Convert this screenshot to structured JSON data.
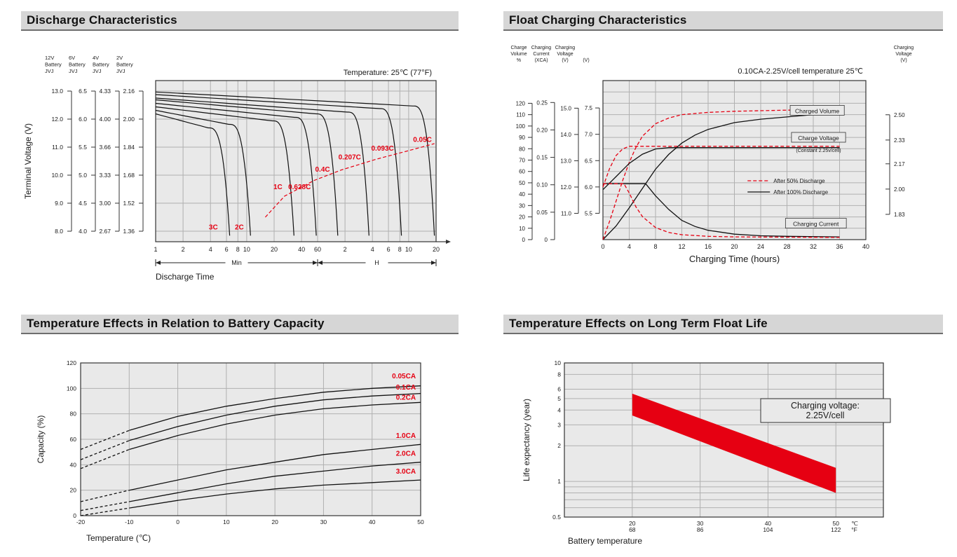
{
  "colors": {
    "header_bg": "#d6d6d6",
    "header_border": "#6e6e6e",
    "plot_bg": "#e9e9e9",
    "grid": "#b0b0b0",
    "red": "#e60012",
    "ink": "#111111"
  },
  "panels": [
    {
      "title": "Discharge Characteristics"
    },
    {
      "title": "Float Charging Characteristics"
    },
    {
      "title": "Temperature Effects in Relation to Battery Capacity"
    },
    {
      "title": "Temperature Effects on Long Term Float Life"
    }
  ],
  "chart_data": [
    {
      "id": "discharge",
      "type": "line",
      "title": "Discharge Characteristics",
      "annotation": "Temperature: 25℃ (77°F)",
      "ylabel": "Terminal Voltage (V)",
      "xlabel": "Discharge Time",
      "x_axis": {
        "scale": "log",
        "unit_segments": [
          {
            "label": "Min",
            "ticks": [
              1,
              2,
              4,
              6,
              8,
              10,
              20,
              40,
              60
            ]
          },
          {
            "label": "H",
            "ticks": [
              2,
              4,
              6,
              8,
              10,
              20
            ]
          }
        ]
      },
      "y_axes": [
        {
          "name": [
            "12V",
            "Battery",
            "JVJ"
          ],
          "ticks": [
            "13.0",
            "12.0",
            "11.0",
            "10.0",
            "9.0",
            "8.0"
          ]
        },
        {
          "name": [
            "6V",
            "Battery",
            "JVJ"
          ],
          "ticks": [
            "6.5",
            "6.0",
            "5.5",
            "5.0",
            "4.5",
            "4.0"
          ]
        },
        {
          "name": [
            "4V",
            "Battery",
            "JVJ"
          ],
          "ticks": [
            "4.33",
            "4.00",
            "3.66",
            "3.33",
            "3.00",
            "2.67"
          ]
        },
        {
          "name": [
            "2V",
            "Battery",
            "JVJ"
          ],
          "ticks": [
            "2.16",
            "2.00",
            "1.84",
            "1.68",
            "1.52",
            "1.36"
          ]
        }
      ],
      "y_range_2v": [
        1.3,
        2.22
      ],
      "curves": [
        {
          "label": "3C",
          "v_start": 2.03,
          "t_end_min": 6.5,
          "label_at": [
            4.3,
            1.37
          ]
        },
        {
          "label": "2C",
          "v_start": 2.05,
          "t_end_min": 11,
          "label_at": [
            8.3,
            1.37
          ]
        },
        {
          "label": "1C",
          "v_start": 2.07,
          "t_end_min": 33,
          "label_at": [
            22,
            1.6
          ]
        },
        {
          "label": "0.628C",
          "v_start": 2.09,
          "t_end_min": 58,
          "label_at": [
            38,
            1.6
          ]
        },
        {
          "label": "0.4C",
          "v_start": 2.11,
          "t_end_min": 100,
          "label_at": [
            68,
            1.7
          ]
        },
        {
          "label": "0.207C",
          "v_start": 2.12,
          "t_end_min": 220,
          "label_at": [
            135,
            1.77
          ]
        },
        {
          "label": "0.093C",
          "v_start": 2.14,
          "t_end_min": 500,
          "label_at": [
            310,
            1.82
          ]
        },
        {
          "label": "0.05C",
          "v_start": 2.155,
          "t_end_min": 1150,
          "label_at": [
            850,
            1.87
          ]
        }
      ],
      "red_dashed_points": [
        [
          16,
          1.44
        ],
        [
          26,
          1.56
        ],
        [
          55,
          1.65
        ],
        [
          110,
          1.71
        ],
        [
          260,
          1.77
        ],
        [
          600,
          1.82
        ],
        [
          1150,
          1.86
        ]
      ]
    },
    {
      "id": "float-charging",
      "type": "line",
      "title": "Float Charging Characteristics",
      "annotation": "0.10CA-2.25V/cell  temperature 25℃",
      "xlabel": "Charging Time (hours)",
      "x_ticks": [
        0,
        4,
        8,
        12,
        16,
        20,
        24,
        28,
        32,
        36,
        40
      ],
      "left_axes": [
        {
          "header": [
            "Charge",
            "Volume",
            "%"
          ],
          "ticks": [
            0,
            10,
            20,
            30,
            40,
            50,
            60,
            70,
            80,
            90,
            100,
            110,
            120
          ],
          "range": [
            0,
            140
          ]
        },
        {
          "header": [
            "Charging",
            "Current",
            "(XCA)"
          ],
          "ticks": [
            "0",
            "0.05",
            "0.10",
            "0.15",
            "0.20",
            "0.25"
          ],
          "values": [
            0,
            0.05,
            0.1,
            0.15,
            0.2,
            0.25
          ],
          "range": [
            0,
            0.29
          ]
        },
        {
          "header": [
            "Charging",
            "Voltage",
            "(V)"
          ],
          "ticks": [
            "11.0",
            "12.0",
            "13.0",
            "14.0",
            "15.0"
          ],
          "values": [
            11,
            12,
            13,
            14,
            15
          ],
          "range": [
            10.0,
            16.05
          ]
        },
        {
          "header": [
            "",
            "",
            "(V)"
          ],
          "ticks": [
            "5.5",
            "6.0",
            "6.5",
            "7.0",
            "7.5"
          ],
          "values": [
            5.5,
            6,
            6.5,
            7,
            7.5
          ],
          "range": [
            5.0,
            8.02
          ]
        }
      ],
      "right_axis": {
        "header": [
          "Charging",
          "Voltage",
          "(V)"
        ],
        "ticks": [
          "2.50",
          "2.33",
          "2.17",
          "2.00",
          "1.83"
        ],
        "values": [
          2.5,
          2.33,
          2.17,
          2.0,
          1.83
        ],
        "range": [
          1.66,
          2.73
        ]
      },
      "series": [
        {
          "name": "charged-volume-100",
          "axis": "pct",
          "style": "solid",
          "color": "#111111",
          "points": [
            [
              0,
              0
            ],
            [
              2,
              12
            ],
            [
              4,
              28
            ],
            [
              6,
              45
            ],
            [
              8,
              62
            ],
            [
              10,
              75
            ],
            [
              12,
              85
            ],
            [
              14,
              92
            ],
            [
              16,
              97
            ],
            [
              20,
              103
            ],
            [
              24,
              106
            ],
            [
              28,
              108
            ],
            [
              32,
              110
            ],
            [
              36,
              111
            ]
          ]
        },
        {
          "name": "charged-volume-50",
          "axis": "pct",
          "style": "dashed",
          "color": "#e60012",
          "points": [
            [
              0,
              0
            ],
            [
              1,
              16
            ],
            [
              2,
              34
            ],
            [
              3,
              52
            ],
            [
              4,
              68
            ],
            [
              5,
              81
            ],
            [
              6,
              91
            ],
            [
              8,
              102
            ],
            [
              10,
              107
            ],
            [
              12,
              110
            ],
            [
              16,
              112
            ],
            [
              20,
              113
            ],
            [
              28,
              114
            ],
            [
              36,
              114
            ]
          ]
        },
        {
          "name": "charge-voltage-100",
          "axis": "v12",
          "style": "solid",
          "color": "#111111",
          "points": [
            [
              0,
              11.9
            ],
            [
              2,
              12.4
            ],
            [
              4,
              12.9
            ],
            [
              6,
              13.25
            ],
            [
              8,
              13.45
            ],
            [
              10,
              13.5
            ],
            [
              36,
              13.5
            ]
          ]
        },
        {
          "name": "charge-voltage-50",
          "axis": "v12",
          "style": "dashed",
          "color": "#e60012",
          "points": [
            [
              0,
              12.0
            ],
            [
              1,
              12.7
            ],
            [
              2,
              13.2
            ],
            [
              3,
              13.45
            ],
            [
              4,
              13.55
            ],
            [
              36,
              13.55
            ]
          ]
        },
        {
          "name": "charging-current-100",
          "axis": "xca",
          "style": "solid",
          "color": "#111111",
          "points": [
            [
              0,
              0.102
            ],
            [
              6.5,
              0.102
            ],
            [
              8,
              0.08
            ],
            [
              10,
              0.055
            ],
            [
              12,
              0.035
            ],
            [
              14,
              0.024
            ],
            [
              16,
              0.017
            ],
            [
              20,
              0.01
            ],
            [
              24,
              0.007
            ],
            [
              28,
              0.006
            ],
            [
              36,
              0.005
            ]
          ]
        },
        {
          "name": "charging-current-50",
          "axis": "xca",
          "style": "dashed",
          "color": "#e60012",
          "points": [
            [
              0,
              0.102
            ],
            [
              3.2,
              0.102
            ],
            [
              4,
              0.085
            ],
            [
              5,
              0.06
            ],
            [
              6,
              0.042
            ],
            [
              8,
              0.022
            ],
            [
              10,
              0.013
            ],
            [
              12,
              0.009
            ],
            [
              16,
              0.006
            ],
            [
              20,
              0.005
            ],
            [
              36,
              0.004
            ]
          ]
        }
      ],
      "plot_labels": [
        {
          "text": "Charged Volume",
          "box": true,
          "fx": 0.815,
          "fy": 0.2
        },
        {
          "text": "Charge Voltage",
          "box": true,
          "fx": 0.82,
          "fy": 0.37
        },
        {
          "text": "(Constant 2.25v/cell)",
          "box": false,
          "fx": 0.82,
          "fy": 0.445
        },
        {
          "text": "Charging Current",
          "box": true,
          "fx": 0.81,
          "fy": 0.91
        }
      ],
      "legend": [
        {
          "text": "After  50% Discharge",
          "style": "dashed",
          "color": "#e60012"
        },
        {
          "text": "After 100% Discharge",
          "style": "solid",
          "color": "#111111"
        }
      ],
      "legend_pos": {
        "fx": 0.55,
        "fy": 0.63
      }
    },
    {
      "id": "temp-capacity",
      "type": "line",
      "title": "Temperature Effects in Relation to Battery Capacity",
      "xlabel": "Temperature (℃)",
      "ylabel": "Capacity (%)",
      "x_ticks": [
        -20,
        -10,
        0,
        10,
        20,
        30,
        40,
        50
      ],
      "y_ticks": [
        0,
        20,
        40,
        60,
        80,
        100,
        120
      ],
      "x_range": [
        -20,
        50
      ],
      "y_range": [
        0,
        120
      ],
      "label_x": 49,
      "label_color": "#e60012",
      "series": [
        {
          "name": "0.05CA",
          "label_y": 108,
          "points": [
            [
              -20,
              52
            ],
            [
              -10,
              67
            ],
            [
              0,
              78
            ],
            [
              10,
              86
            ],
            [
              20,
              92
            ],
            [
              30,
              97
            ],
            [
              40,
              100
            ],
            [
              50,
              102
            ]
          ]
        },
        {
          "name": "0.1CA",
          "label_y": 99,
          "points": [
            [
              -20,
              44
            ],
            [
              -10,
              59
            ],
            [
              0,
              70
            ],
            [
              10,
              79
            ],
            [
              20,
              86
            ],
            [
              30,
              91
            ],
            [
              40,
              94
            ],
            [
              50,
              96
            ]
          ]
        },
        {
          "name": "0.2CA",
          "label_y": 91,
          "points": [
            [
              -20,
              37
            ],
            [
              -10,
              52
            ],
            [
              0,
              63
            ],
            [
              10,
              72
            ],
            [
              20,
              79
            ],
            [
              30,
              84
            ],
            [
              40,
              87
            ],
            [
              50,
              89
            ]
          ]
        },
        {
          "name": "1.0CA",
          "label_y": 61,
          "points": [
            [
              -20,
              11
            ],
            [
              -10,
              20
            ],
            [
              0,
              28
            ],
            [
              10,
              36
            ],
            [
              20,
              42
            ],
            [
              30,
              48
            ],
            [
              40,
              52
            ],
            [
              50,
              56
            ]
          ]
        },
        {
          "name": "2.0CA",
          "label_y": 47,
          "points": [
            [
              -20,
              4
            ],
            [
              -10,
              11
            ],
            [
              0,
              18
            ],
            [
              10,
              25
            ],
            [
              20,
              31
            ],
            [
              30,
              35
            ],
            [
              40,
              39
            ],
            [
              50,
              42
            ]
          ]
        },
        {
          "name": "3.0CA",
          "label_y": 33,
          "points": [
            [
              -20,
              0
            ],
            [
              -10,
              6
            ],
            [
              0,
              12
            ],
            [
              10,
              17
            ],
            [
              20,
              21
            ],
            [
              30,
              24
            ],
            [
              40,
              26
            ],
            [
              50,
              28
            ]
          ]
        }
      ]
    },
    {
      "id": "float-life",
      "type": "area",
      "title": "Temperature Effects on Long Term Float Life",
      "xlabel": "Battery temperature",
      "ylabel": "Life expectancy (year)",
      "annotation": [
        "Charging voltage:",
        "2.25V/cell"
      ],
      "x_ticks_c": [
        20,
        30,
        40,
        50
      ],
      "x_ticks_f": [
        68,
        86,
        104,
        122
      ],
      "x_unit_labels": [
        "℃",
        "°F"
      ],
      "x_range": [
        10,
        57
      ],
      "y_scale": "log",
      "y_range": [
        0.5,
        10
      ],
      "y_ticks": [
        10,
        8,
        6,
        5,
        4,
        3,
        2,
        1,
        0.5
      ],
      "y_gridlines": [
        10,
        8,
        6,
        5,
        4,
        3,
        2,
        1,
        0.9,
        0.8,
        0.7,
        0.6,
        0.5
      ],
      "band": {
        "color": "#e60012",
        "top": [
          [
            20,
            5.5
          ],
          [
            50,
            1.3
          ]
        ],
        "bottom": [
          [
            20,
            3.6
          ],
          [
            50,
            0.8
          ]
        ]
      }
    }
  ]
}
